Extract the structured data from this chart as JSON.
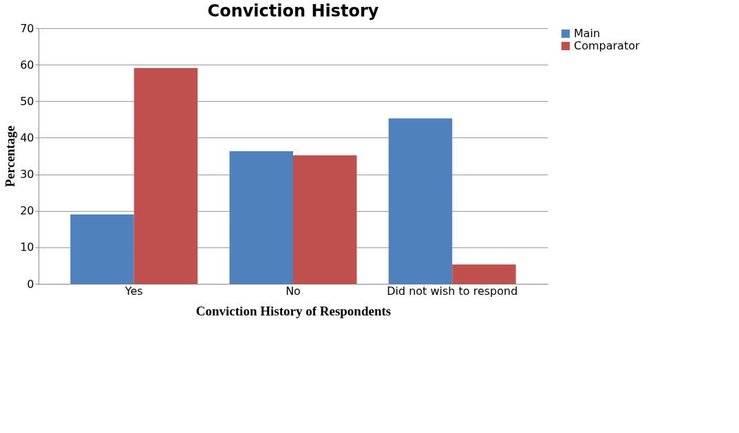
{
  "chart_data": {
    "type": "bar",
    "title": "Conviction History",
    "xlabel": "Conviction History of Respondents",
    "ylabel": "Percentage",
    "categories": [
      "Yes",
      "No",
      "Did not wish to respond"
    ],
    "series": [
      {
        "name": "Main",
        "color": "#4f81bd",
        "values": [
          19.0,
          36.3,
          45.3
        ]
      },
      {
        "name": "Comparator",
        "color": "#c0504d",
        "values": [
          59.1,
          35.2,
          5.3
        ]
      }
    ],
    "ylim": [
      0,
      70
    ],
    "yticks": [
      0,
      10,
      20,
      30,
      40,
      50,
      60,
      70
    ],
    "grid": "y",
    "legend": "right"
  }
}
